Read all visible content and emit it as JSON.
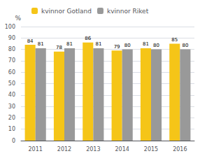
{
  "chart_data": {
    "type": "bar",
    "categories": [
      "2011",
      "2012",
      "2013",
      "2014",
      "2015",
      "2016"
    ],
    "series": [
      {
        "name": "kvinnor Gotland",
        "color": "#F5C518",
        "values": [
          84,
          78,
          86,
          79,
          81,
          85
        ]
      },
      {
        "name": "kvinnor Riket",
        "color": "#999999",
        "values": [
          81,
          81,
          81,
          80,
          80,
          80
        ]
      }
    ],
    "ylabel": "%",
    "ylim": [
      0,
      100
    ],
    "yticks": [
      0,
      10,
      20,
      30,
      40,
      50,
      60,
      70,
      80,
      90,
      100
    ],
    "grid": true,
    "legend": "upper left",
    "data_labels": true
  }
}
